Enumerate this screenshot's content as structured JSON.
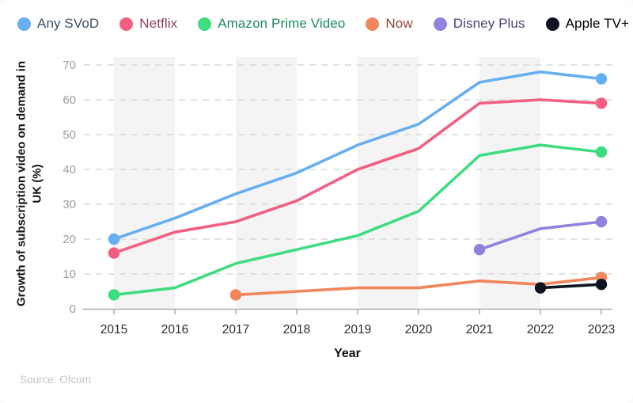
{
  "source": {
    "text": "Source: Ofcom"
  },
  "chart_data": {
    "type": "line",
    "title": "",
    "xlabel": "Year",
    "ylabel": "Growth of subscription video on demand in UK (%)",
    "x": [
      2015,
      2016,
      2017,
      2018,
      2019,
      2020,
      2021,
      2022,
      2023
    ],
    "yticks": [
      0,
      10,
      20,
      30,
      40,
      50,
      60,
      70
    ],
    "ylim": [
      0,
      70
    ],
    "grid": true,
    "legend_position": "top",
    "series": [
      {
        "name": "Any SVoD",
        "color": "#68aff2",
        "label_color": "#3d4e63",
        "points": [
          [
            2015,
            20
          ],
          [
            2016,
            26
          ],
          [
            2017,
            33
          ],
          [
            2018,
            39
          ],
          [
            2019,
            47
          ],
          [
            2020,
            53
          ],
          [
            2021,
            65
          ],
          [
            2022,
            68
          ],
          [
            2023,
            66
          ]
        ]
      },
      {
        "name": "Netflix",
        "color": "#f25f83",
        "label_color": "#8e4154",
        "points": [
          [
            2015,
            16
          ],
          [
            2016,
            22
          ],
          [
            2017,
            25
          ],
          [
            2018,
            31
          ],
          [
            2019,
            40
          ],
          [
            2020,
            46
          ],
          [
            2021,
            59
          ],
          [
            2022,
            60
          ],
          [
            2023,
            59
          ]
        ]
      },
      {
        "name": "Amazon Prime Video",
        "color": "#40dc81",
        "label_color": "#1a8a5b",
        "points": [
          [
            2015,
            4
          ],
          [
            2016,
            6
          ],
          [
            2017,
            13
          ],
          [
            2018,
            17
          ],
          [
            2019,
            21
          ],
          [
            2020,
            28
          ],
          [
            2021,
            44
          ],
          [
            2022,
            47
          ],
          [
            2023,
            45
          ]
        ]
      },
      {
        "name": "Now",
        "color": "#f1865a",
        "label_color": "#8e4736",
        "points": [
          [
            2017,
            4
          ],
          [
            2018,
            5
          ],
          [
            2019,
            6
          ],
          [
            2020,
            6
          ],
          [
            2021,
            8
          ],
          [
            2022,
            7
          ],
          [
            2023,
            9
          ]
        ]
      },
      {
        "name": "Disney Plus",
        "color": "#9282dd",
        "label_color": "#4c4379",
        "points": [
          [
            2021,
            17
          ],
          [
            2022,
            23
          ],
          [
            2023,
            25
          ]
        ]
      },
      {
        "name": "Apple TV+",
        "color": "#0e1420",
        "label_color": "#000000",
        "points": [
          [
            2022,
            6
          ],
          [
            2023,
            7
          ]
        ]
      }
    ]
  }
}
